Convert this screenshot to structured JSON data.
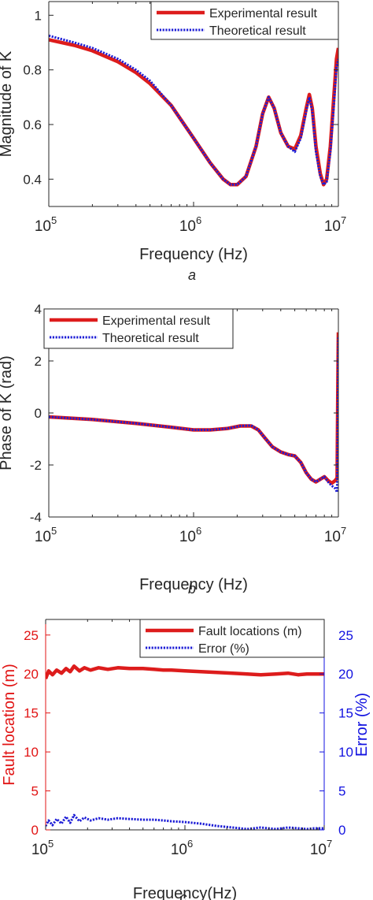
{
  "chart_data": [
    {
      "type": "line",
      "panel_label": "a",
      "xlabel": "Frequency (Hz)",
      "ylabel": "Magnitude of K",
      "xscale": "log",
      "xlim": [
        100000,
        10000000
      ],
      "ylim": [
        0.3,
        1.05
      ],
      "yticks": [
        0.4,
        0.6,
        0.8,
        1
      ],
      "ytick_labels": [
        "0.4",
        "0.6",
        "0.8",
        "1"
      ],
      "xtick_labels": [
        {
          "base": "10",
          "exp": "5"
        },
        {
          "base": "10",
          "exp": "6"
        },
        {
          "base": "10",
          "exp": "7"
        }
      ],
      "grid": false,
      "legend_position": "top-right",
      "series": [
        {
          "name": "Experimental result",
          "color": "#dd1c1c",
          "style": "solid",
          "x": [
            100000,
            150000,
            200000,
            300000,
            400000,
            500000,
            700000,
            1000000,
            1300000,
            1600000,
            1800000,
            2000000,
            2300000,
            2700000,
            3000000,
            3300000,
            3600000,
            4000000,
            4500000,
            5000000,
            5500000,
            6000000,
            6300000,
            6600000,
            7000000,
            7500000,
            7900000,
            8300000,
            8800000,
            9300000,
            9700000,
            10000000
          ],
          "y": [
            0.91,
            0.89,
            0.87,
            0.83,
            0.79,
            0.75,
            0.67,
            0.55,
            0.46,
            0.4,
            0.38,
            0.38,
            0.41,
            0.52,
            0.64,
            0.7,
            0.66,
            0.57,
            0.52,
            0.51,
            0.56,
            0.66,
            0.71,
            0.66,
            0.52,
            0.42,
            0.38,
            0.4,
            0.52,
            0.7,
            0.84,
            0.88
          ]
        },
        {
          "name": "Theoretical result",
          "color": "#1d1dd6",
          "style": "dotted",
          "x": [
            100000,
            150000,
            200000,
            300000,
            400000,
            500000,
            700000,
            1000000,
            1300000,
            1600000,
            1800000,
            2000000,
            2300000,
            2700000,
            3000000,
            3300000,
            3600000,
            4000000,
            4500000,
            5000000,
            5500000,
            6000000,
            6300000,
            6600000,
            7000000,
            7500000,
            7900000,
            8300000,
            8800000,
            9300000,
            9700000,
            10000000
          ],
          "y": [
            0.925,
            0.9,
            0.88,
            0.84,
            0.8,
            0.76,
            0.67,
            0.55,
            0.46,
            0.4,
            0.38,
            0.38,
            0.41,
            0.52,
            0.64,
            0.7,
            0.66,
            0.57,
            0.52,
            0.5,
            0.55,
            0.65,
            0.7,
            0.65,
            0.5,
            0.41,
            0.38,
            0.39,
            0.5,
            0.67,
            0.81,
            0.84
          ]
        }
      ]
    },
    {
      "type": "line",
      "panel_label": "b",
      "xlabel": "Frequency (Hz)",
      "ylabel": "Phase of K (rad)",
      "xscale": "log",
      "xlim": [
        100000,
        10000000
      ],
      "ylim": [
        -4,
        4
      ],
      "yticks": [
        -4,
        -2,
        0,
        2,
        4
      ],
      "ytick_labels": [
        "-4",
        "-2",
        "0",
        "2",
        "4"
      ],
      "xtick_labels": [
        {
          "base": "10",
          "exp": "5"
        },
        {
          "base": "10",
          "exp": "6"
        },
        {
          "base": "10",
          "exp": "7"
        }
      ],
      "grid": false,
      "legend_position": "top-left",
      "series": [
        {
          "name": "Experimental result",
          "color": "#dd1c1c",
          "style": "solid",
          "x": [
            100000,
            200000,
            400000,
            700000,
            1000000,
            1300000,
            1700000,
            2100000,
            2500000,
            2800000,
            3100000,
            3500000,
            4000000,
            4500000,
            5000000,
            5500000,
            6000000,
            6500000,
            7000000,
            7500000,
            8000000,
            8500000,
            9000000,
            9500000,
            9800000,
            9900000,
            10000000
          ],
          "y": [
            -0.15,
            -0.25,
            -0.4,
            -0.55,
            -0.65,
            -0.65,
            -0.6,
            -0.5,
            -0.5,
            -0.65,
            -0.95,
            -1.3,
            -1.5,
            -1.6,
            -1.65,
            -1.9,
            -2.3,
            -2.55,
            -2.65,
            -2.55,
            -2.45,
            -2.6,
            -2.7,
            -2.6,
            -2.5,
            0.5,
            3.1
          ]
        },
        {
          "name": "Theoretical result",
          "color": "#1d1dd6",
          "style": "dotted",
          "x": [
            100000,
            200000,
            400000,
            700000,
            1000000,
            1300000,
            1700000,
            2100000,
            2500000,
            2800000,
            3100000,
            3500000,
            4000000,
            4500000,
            5000000,
            5500000,
            6000000,
            6500000,
            7000000,
            7500000,
            8000000,
            8500000,
            9000000,
            9500000,
            9800000,
            9900000,
            10000000
          ],
          "y": [
            -0.15,
            -0.25,
            -0.4,
            -0.55,
            -0.65,
            -0.65,
            -0.6,
            -0.5,
            -0.48,
            -0.65,
            -0.95,
            -1.3,
            -1.5,
            -1.6,
            -1.65,
            -1.9,
            -2.3,
            -2.55,
            -2.65,
            -2.55,
            -2.45,
            -2.65,
            -2.8,
            -2.9,
            -3.05,
            -0.5,
            2.9
          ]
        }
      ]
    },
    {
      "type": "line",
      "panel_label": "c",
      "xlabel": "Frequency(Hz)",
      "ylabel": "Fault location (m)",
      "ylabel_right": "Error (%)",
      "xscale": "log",
      "xlim": [
        100000,
        10000000
      ],
      "ylim": [
        0,
        27
      ],
      "ylim_right": [
        0,
        27
      ],
      "yticks": [
        0,
        5,
        10,
        15,
        20,
        25
      ],
      "ytick_labels": [
        "0",
        "5",
        "10",
        "15",
        "20",
        "25"
      ],
      "ytick_labels_right": [
        "0",
        "5",
        "10",
        "15",
        "20",
        "25"
      ],
      "left_axis_color": "#e11414",
      "right_axis_color": "#1212e0",
      "xtick_labels": [
        {
          "base": "10",
          "exp": "5"
        },
        {
          "base": "10",
          "exp": "6"
        },
        {
          "base": "10",
          "exp": "7"
        }
      ],
      "grid": false,
      "legend_position": "top-right",
      "series": [
        {
          "name": "Fault locations (m)",
          "axis": "left",
          "color": "#dd1c1c",
          "style": "solid",
          "x": [
            100000,
            105000,
            112000,
            120000,
            130000,
            140000,
            150000,
            160000,
            175000,
            190000,
            210000,
            240000,
            280000,
            330000,
            400000,
            500000,
            600000,
            700000,
            800000,
            1000000,
            1300000,
            1700000,
            2200000,
            2800000,
            3500000,
            4500000,
            5500000,
            6500000,
            7500000,
            8500000,
            10000000
          ],
          "y": [
            19.4,
            20.4,
            19.9,
            20.5,
            20.1,
            20.7,
            20.3,
            21.0,
            20.4,
            20.8,
            20.5,
            20.8,
            20.6,
            20.8,
            20.7,
            20.7,
            20.6,
            20.5,
            20.5,
            20.4,
            20.3,
            20.2,
            20.1,
            20.0,
            19.9,
            20.0,
            20.1,
            19.9,
            20.0,
            20.0,
            20.0
          ]
        },
        {
          "name": "Error (%)",
          "axis": "right",
          "color": "#1d1dd6",
          "style": "dotted",
          "x": [
            100000,
            105000,
            112000,
            120000,
            130000,
            140000,
            150000,
            160000,
            175000,
            190000,
            210000,
            240000,
            280000,
            330000,
            400000,
            500000,
            600000,
            700000,
            800000,
            1000000,
            1300000,
            1700000,
            2200000,
            2800000,
            3500000,
            4500000,
            5500000,
            6500000,
            7500000,
            8500000,
            10000000
          ],
          "y": [
            0.5,
            1.2,
            0.6,
            1.4,
            0.8,
            1.7,
            0.9,
            1.9,
            1.1,
            1.6,
            1.2,
            1.5,
            1.3,
            1.5,
            1.4,
            1.3,
            1.3,
            1.2,
            1.1,
            1.0,
            0.8,
            0.5,
            0.3,
            0.1,
            0.3,
            0.1,
            0.3,
            0.2,
            0.1,
            0.2,
            0.2
          ]
        }
      ]
    }
  ]
}
